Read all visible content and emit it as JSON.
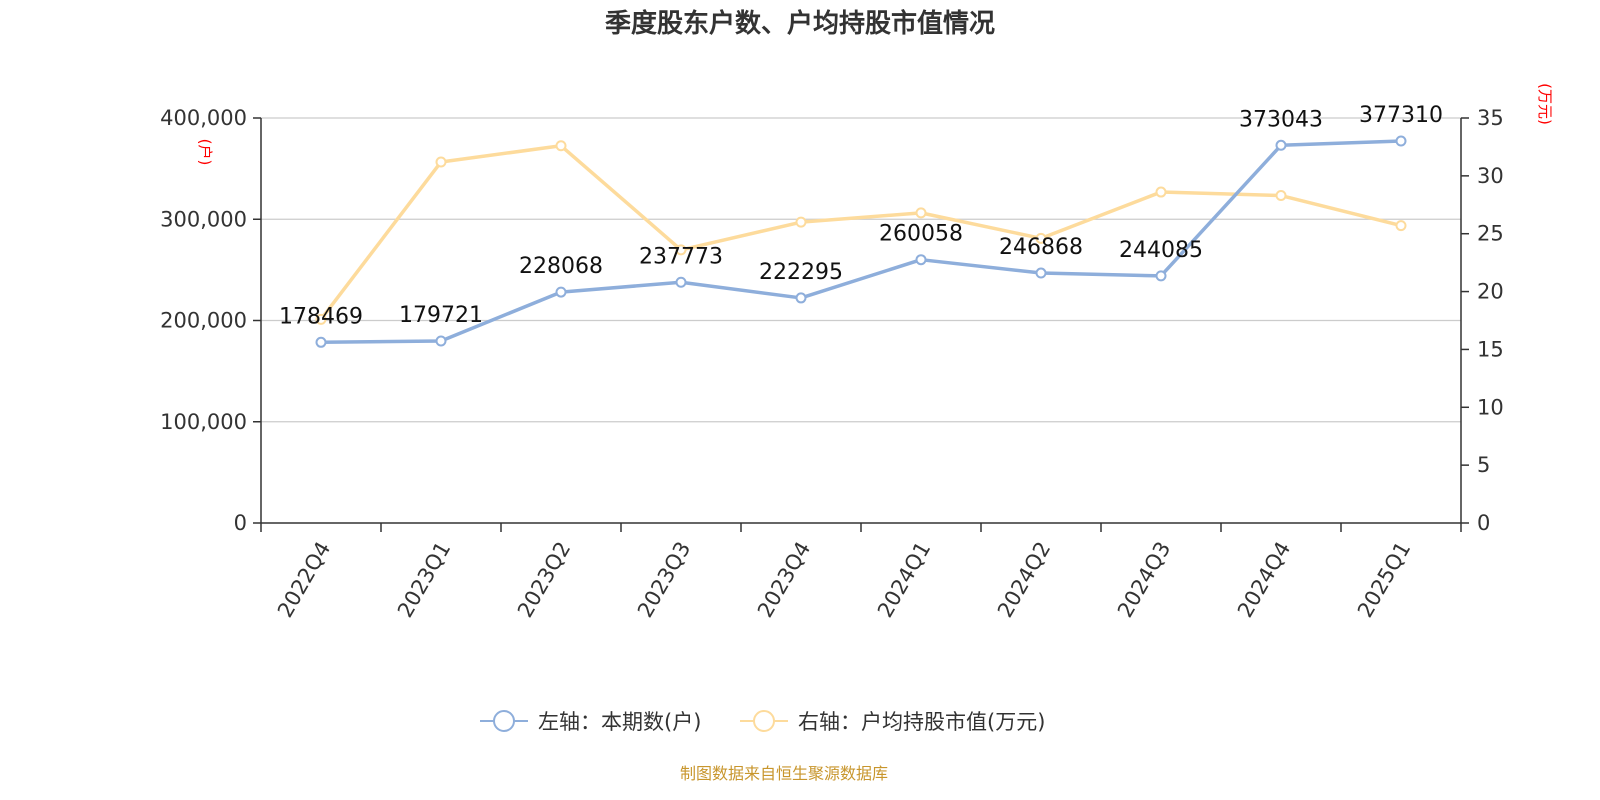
{
  "chart_data": {
    "type": "line",
    "title": "季度股东户数、户均持股市值情况",
    "categories": [
      "2022Q4",
      "2023Q1",
      "2023Q2",
      "2023Q3",
      "2023Q4",
      "2024Q1",
      "2024Q2",
      "2024Q3",
      "2024Q4",
      "2025Q1"
    ],
    "series": [
      {
        "name": "左轴：本期数(户)",
        "axis": "left",
        "color": "#8eaedb",
        "values": [
          178469,
          179721,
          228068,
          237773,
          222295,
          260058,
          246868,
          244085,
          373043,
          377310
        ]
      },
      {
        "name": "右轴：户均持股市值(万元)",
        "axis": "right",
        "color": "#fddb9c",
        "values": [
          17.6,
          31.2,
          32.6,
          23.6,
          26.0,
          26.8,
          24.6,
          28.6,
          28.3,
          25.7
        ]
      }
    ],
    "left_axis": {
      "unit": "(户)",
      "ylim": [
        0,
        400000
      ],
      "ticks": [
        "0",
        "100,000",
        "200,000",
        "300,000",
        "400,000"
      ]
    },
    "right_axis": {
      "unit": "(万元)",
      "ylim": [
        0,
        35
      ],
      "ticks": [
        "0",
        "5",
        "10",
        "15",
        "20",
        "25",
        "30",
        "35"
      ]
    },
    "grid": true,
    "legend_position": "bottom-center",
    "source": "制图数据来自恒生聚源数据库"
  }
}
